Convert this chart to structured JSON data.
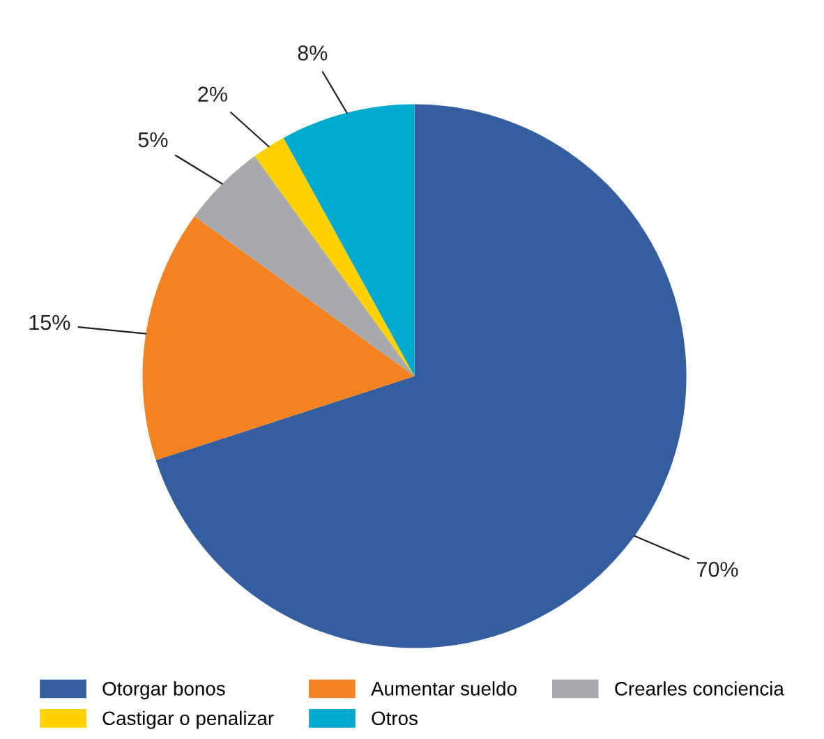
{
  "chart_data": {
    "type": "pie",
    "categories": [
      "Otorgar bonos",
      "Aumentar sueldo",
      "Crearles conciencia",
      "Castigar o penalizar",
      "Otros"
    ],
    "values": [
      70,
      15,
      5,
      2,
      8
    ],
    "value_labels": [
      "70%",
      "15%",
      "5%",
      "2%",
      "8%"
    ],
    "colors": [
      "#355e9e",
      "#f58220",
      "#a7a9ac",
      "#ffd200",
      "#00a9ce"
    ],
    "legend": "bottom"
  }
}
